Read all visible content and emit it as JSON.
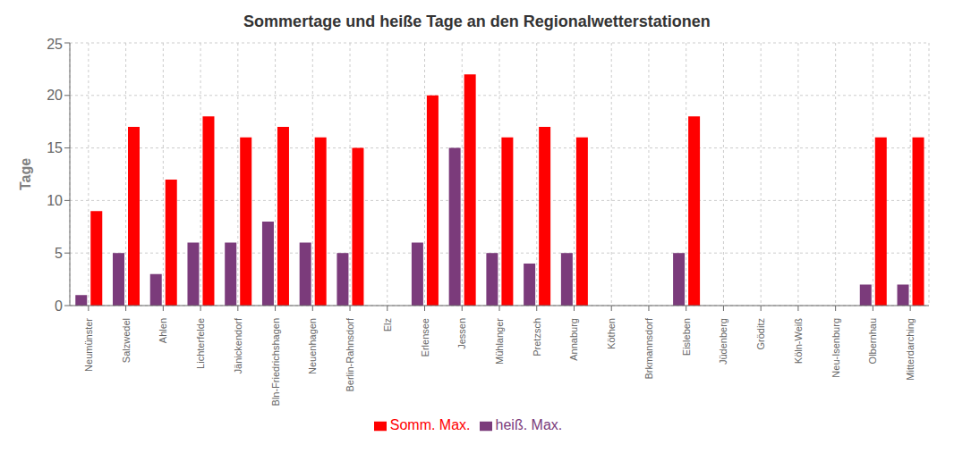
{
  "chart_data": {
    "type": "bar",
    "title": "Sommertage und heiße Tage an den Regionalwetterstationen",
    "ylabel": "Tage",
    "categories": [
      "Neumünster",
      "Salzwedel",
      "Ahlen",
      "Lichterfelde",
      "Jänickendorf",
      "Bln-Friedrichshagen",
      "Neuenhagen",
      "Berlin-Rahnsdorf",
      "Elz",
      "Erlensee",
      "Jessen",
      "Mühlanger",
      "Pretzsch",
      "Annaburg",
      "Köthen",
      "Brkmannsdorf",
      "Eisleben",
      "Jüdenberg",
      "Gröditz",
      "Köln-Weiß",
      "Neu-Isenburg",
      "Olbernhau",
      "Mitterdarching"
    ],
    "series": [
      {
        "name": "heiß. Max.",
        "color": "#7B3B7B",
        "values": [
          1,
          5,
          3,
          6,
          6,
          8,
          6,
          5,
          0,
          6,
          15,
          5,
          4,
          5,
          0,
          0,
          5,
          0,
          0,
          0,
          0,
          2,
          2
        ]
      },
      {
        "name": "Somm. Max.",
        "color": "#FF0000",
        "values": [
          9,
          17,
          12,
          18,
          16,
          17,
          16,
          15,
          0,
          20,
          22,
          16,
          17,
          16,
          0,
          0,
          18,
          0,
          0,
          0,
          0,
          16,
          16
        ]
      }
    ],
    "ylim": [
      0,
      25
    ],
    "yticks": [
      0,
      5,
      10,
      15,
      20,
      25
    ],
    "grid": true,
    "legend": "bottom"
  }
}
